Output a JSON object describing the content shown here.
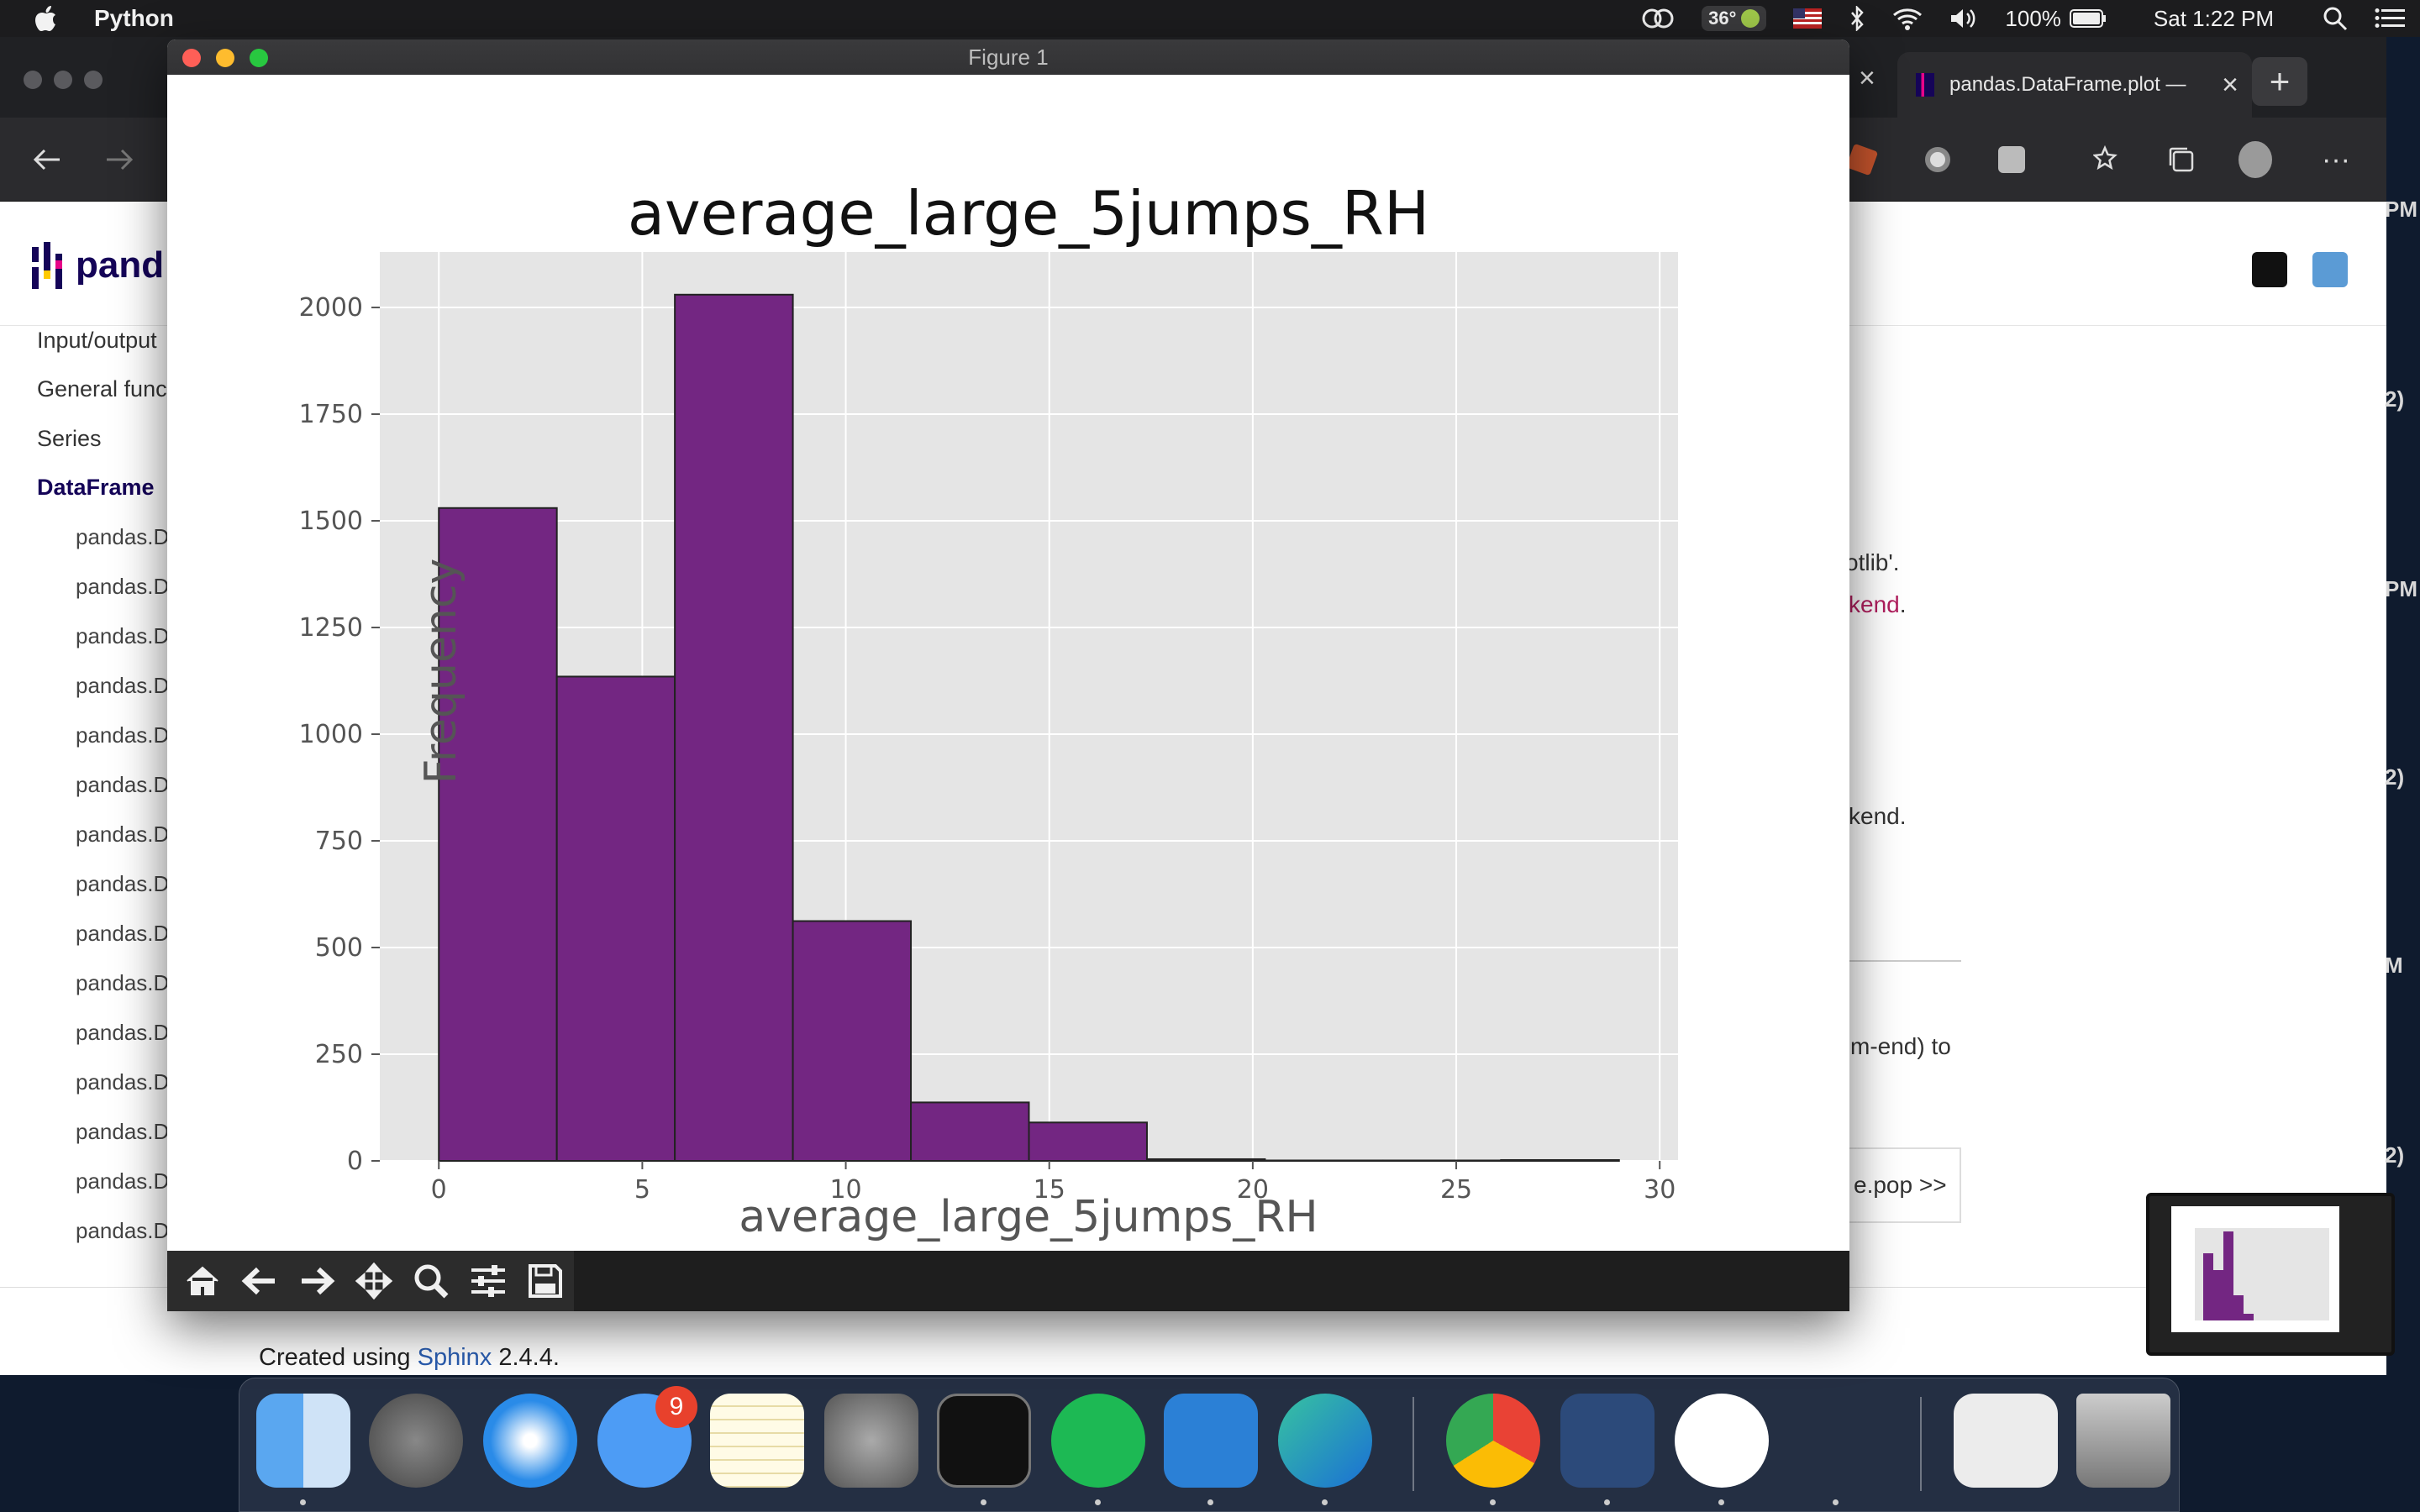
{
  "menubar": {
    "app_name": "Python",
    "temperature": "36°",
    "battery": "100%",
    "clock": "Sat 1:22 PM"
  },
  "browser": {
    "active_tab_title": "pandas.DataFrame.plot —",
    "sidebar": {
      "items": [
        "Input/output",
        "General funct",
        "Series",
        "DataFrame"
      ],
      "active_item": "DataFrame",
      "sub_items": [
        "pandas.D",
        "pandas.D",
        "pandas.D",
        "pandas.D",
        "pandas.D",
        "pandas.D",
        "pandas.D",
        "pandas.D",
        "pandas.D",
        "pandas.D",
        "pandas.D",
        "pandas.D",
        "pandas.D",
        "pandas.D",
        "pandas.D"
      ]
    },
    "logo_text": "pand",
    "content_fragments": {
      "f1": "otlib'.",
      "f2": "kend",
      "f2_end": ".",
      "f3": "kend.",
      "f4": "m-end) to",
      "f5": "e.pop >>"
    },
    "footer": {
      "prefix": "Created using ",
      "link": "Sphinx",
      "suffix": " 2.4.4."
    },
    "edge_timestamps": [
      "PM",
      "2)",
      "PM",
      "2)",
      "M",
      "2)"
    ]
  },
  "figure_window": {
    "title": "Figure 1",
    "toolbar_buttons": [
      "home-icon",
      "back-arrow-icon",
      "forward-arrow-icon",
      "pan-icon",
      "zoom-icon",
      "configure-subplots-icon",
      "save-icon"
    ]
  },
  "chart_data": {
    "type": "bar",
    "title": "average_large_5jumps_RH",
    "xlabel": "average_large_5jumps_RH",
    "ylabel": "Frequency",
    "bin_edges": [
      0,
      2.9,
      5.8,
      8.7,
      11.6,
      14.5,
      17.4,
      20.3,
      23.2,
      26.1,
      29
    ],
    "values": [
      1530,
      1135,
      2030,
      562,
      137,
      90,
      4,
      1,
      1,
      2
    ],
    "xlim": [
      -1.45,
      30.45
    ],
    "ylim": [
      0,
      2130
    ],
    "xticks": [
      0,
      5,
      10,
      15,
      20,
      25,
      30
    ],
    "yticks": [
      0,
      250,
      500,
      750,
      1000,
      1250,
      1500,
      1750,
      2000
    ],
    "bar_color": "#732682",
    "edge_color": "#222222",
    "background_color": "#e5e5e5",
    "grid": true
  },
  "dock": {
    "apps": [
      "finder-icon",
      "launchpad-icon",
      "safari-icon",
      "messages-icon",
      "notes-icon",
      "system-preferences-icon",
      "terminal-icon",
      "spotify-icon",
      "vscode-icon",
      "edge-icon",
      "chrome-icon",
      "mysql-workbench-icon",
      "mongodb-icon",
      "python-launcher-icon",
      "browser-window-icon",
      "trash-icon"
    ],
    "messages_badge": "9"
  }
}
